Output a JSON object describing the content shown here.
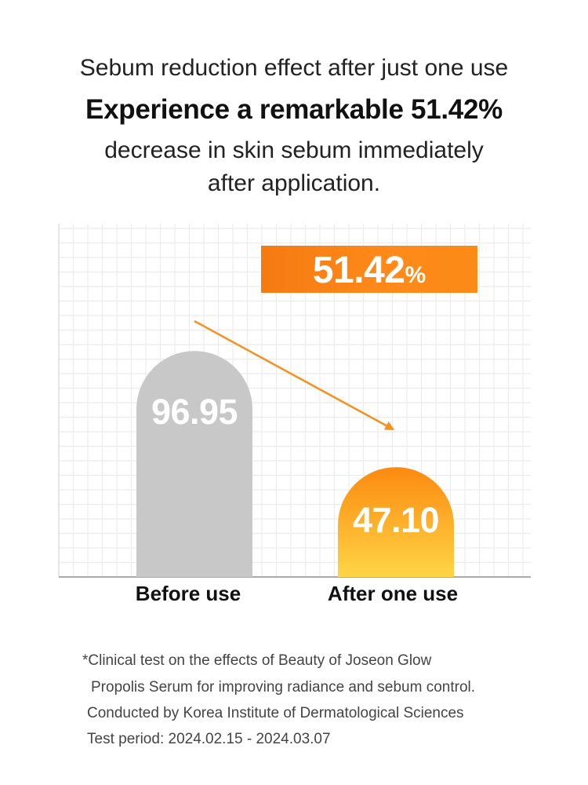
{
  "header": {
    "subtitle": "Sebum reduction effect after just one use",
    "title": "Experience a remarkable 51.42%",
    "description_line1": "decrease in skin sebum immediately",
    "description_line2": "after application."
  },
  "chart_data": {
    "type": "bar",
    "categories": [
      "Before use",
      "After one use"
    ],
    "values": [
      96.95,
      47.1
    ],
    "value_labels": [
      "96.95",
      "47.10"
    ],
    "ylim": [
      0,
      100
    ],
    "grid": true,
    "highlight": {
      "value": "51.42",
      "unit": "%"
    },
    "colors": {
      "before_bar": "#c8c8c8",
      "after_bar_top": "#fb8a10",
      "after_bar_bottom": "#ffd545",
      "arrow": "#f7901e",
      "grid": "#ececec"
    }
  },
  "footnote": {
    "line1": "*Clinical test on the effects of Beauty of Joseon Glow",
    "line2": "Propolis Serum for improving radiance and sebum control.",
    "line3": "Conducted by Korea Institute of Dermatological Sciences",
    "line4": "Test period: 2024.02.15 - 2024.03.07"
  }
}
